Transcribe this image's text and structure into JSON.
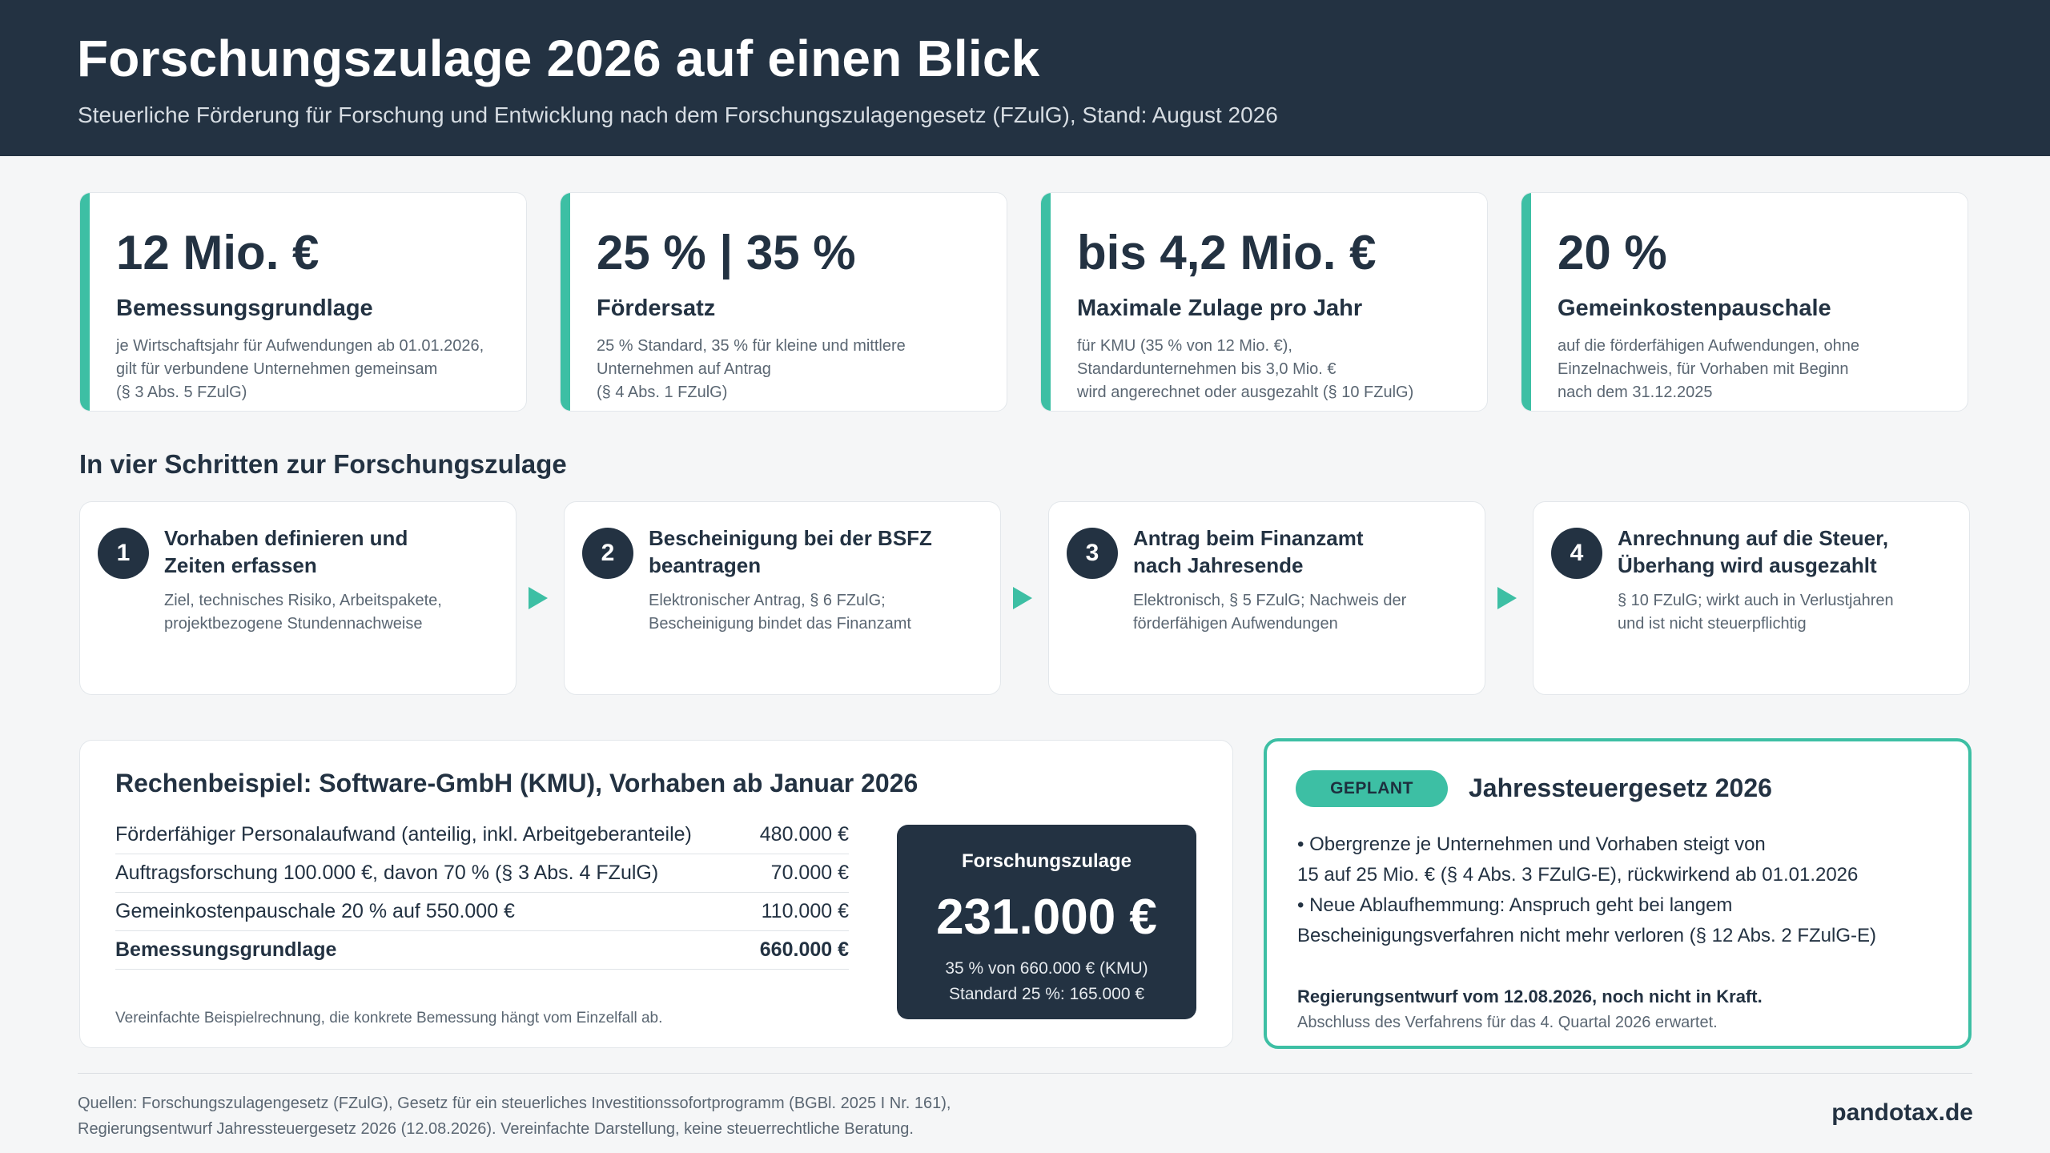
{
  "header": {
    "title": "Forschungszulage 2026 auf einen Blick",
    "subtitle": "Steuerliche Förderung für Forschung und Entwicklung nach dem Forschungszulagengesetz (FZulG), Stand: August 2026"
  },
  "kpis": [
    {
      "value": "12 Mio. €",
      "label": "Bemessungsgrundlage",
      "desc": [
        "je Wirtschaftsjahr für Aufwendungen ab 01.01.2026,",
        "gilt für verbundene Unternehmen gemeinsam",
        "(§ 3 Abs. 5 FZulG)"
      ]
    },
    {
      "value": "25 % | 35 %",
      "label": "Fördersatz",
      "desc": [
        "25 % Standard, 35 % für kleine und mittlere",
        "Unternehmen auf Antrag",
        "(§ 4 Abs. 1 FZulG)"
      ]
    },
    {
      "value": "bis 4,2 Mio. €",
      "label": "Maximale Zulage pro Jahr",
      "desc": [
        "für KMU (35 % von 12 Mio. €),",
        "Standardunternehmen bis 3,0 Mio. €",
        "wird angerechnet oder ausgezahlt (§ 10 FZulG)"
      ]
    },
    {
      "value": "20 %",
      "label": "Gemeinkostenpauschale",
      "desc": [
        "auf die förderfähigen Aufwendungen, ohne",
        "Einzelnachweis, für Vorhaben mit Beginn",
        "nach dem 31.12.2025"
      ]
    }
  ],
  "steps_title": "In vier Schritten zur Forschungszulage",
  "steps": [
    {
      "num": "1",
      "title": [
        "Vorhaben definieren und",
        "Zeiten erfassen"
      ],
      "desc": [
        "Ziel, technisches Risiko, Arbeitspakete,",
        "projektbezogene Stundennachweise"
      ]
    },
    {
      "num": "2",
      "title": [
        "Bescheinigung bei der BSFZ",
        "beantragen"
      ],
      "desc": [
        "Elektronischer Antrag, § 6 FZulG;",
        "Bescheinigung bindet das Finanzamt"
      ]
    },
    {
      "num": "3",
      "title": [
        "Antrag beim Finanzamt",
        "nach Jahresende"
      ],
      "desc": [
        "Elektronisch, § 5 FZulG; Nachweis der",
        "förderfähigen Aufwendungen"
      ]
    },
    {
      "num": "4",
      "title": [
        "Anrechnung auf die Steuer,",
        "Überhang wird ausgezahlt"
      ],
      "desc": [
        "§ 10 FZulG; wirkt auch in Verlustjahren",
        "und ist nicht steuerpflichtig"
      ]
    }
  ],
  "example": {
    "title": "Rechenbeispiel: Software-GmbH (KMU), Vorhaben ab Januar 2026",
    "rows": [
      {
        "label": "Förderfähiger Personalaufwand (anteilig, inkl. Arbeitgeberanteile)",
        "value": "480.000 €"
      },
      {
        "label": "Auftragsforschung 100.000 €, davon 70 % (§ 3 Abs. 4 FZulG)",
        "value": "70.000 €"
      },
      {
        "label": "Gemeinkostenpauschale 20 % auf 550.000 €",
        "value": "110.000 €"
      },
      {
        "label": "Bemessungsgrundlage",
        "value": "660.000 €"
      }
    ],
    "note": "Vereinfachte Beispielrechnung, die konkrete Bemessung hängt vom Einzelfall ab.",
    "result": {
      "label": "Forschungszulage",
      "value": "231.000 €",
      "line1": "35 % von 660.000 € (KMU)",
      "line2": "Standard 25 %: 165.000 €"
    }
  },
  "planned": {
    "badge": "GEPLANT",
    "title": "Jahressteuergesetz 2026",
    "bullets": [
      "• Obergrenze je Unternehmen und Vorhaben steigt von",
      "15 auf 25 Mio. € (§ 4 Abs. 3 FZulG-E), rückwirkend ab 01.01.2026",
      "• Neue Ablaufhemmung: Anspruch geht bei langem",
      "Bescheinigungsverfahren nicht mehr verloren (§ 12 Abs. 2 FZulG-E)"
    ],
    "status": "Regierungsentwurf vom 12.08.2026, noch nicht in Kraft.",
    "note": "Abschluss des Verfahrens für das 4. Quartal 2026 erwartet."
  },
  "footer": {
    "sources": [
      "Quellen: Forschungszulagengesetz (FZulG), Gesetz für ein steuerliches Investitionssofortprogramm (BGBl. 2025 I Nr. 161),",
      "Regierungsentwurf Jahressteuergesetz 2026 (12.08.2026). Vereinfachte Darstellung, keine steuerrechtliche Beratung."
    ],
    "brand": "pandotax.de"
  },
  "colors": {
    "navy": "#233242",
    "accent": "#3dbfa4",
    "background": "#f5f6f7"
  }
}
